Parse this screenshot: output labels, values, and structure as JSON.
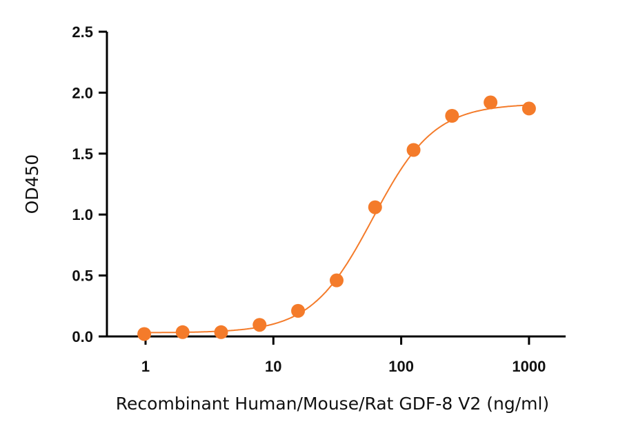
{
  "chart_data": {
    "type": "scatter",
    "title": "",
    "xlabel": "Recombinant Human/Mouse/Rat GDF-8 V2 (ng/ml)",
    "ylabel": "OD450",
    "xscale": "log10",
    "xlim": [
      0.5,
      2000
    ],
    "ylim": [
      0,
      2.5
    ],
    "xticks": [
      1,
      10,
      100,
      1000
    ],
    "xtick_labels": [
      "1",
      "10",
      "100",
      "1000"
    ],
    "yticks": [
      0,
      0.5,
      1.0,
      1.5,
      2.0,
      2.5
    ],
    "ytick_labels": [
      "0.0",
      "0.5",
      "1.0",
      "1.5",
      "2.0",
      "2.5"
    ],
    "grid": false,
    "legend": "none",
    "color": "#F47B2A",
    "series": [
      {
        "name": "GDF-8 V2",
        "x": [
          0.977,
          1.95,
          3.9,
          7.8,
          15.6,
          31.25,
          62.5,
          125,
          250,
          500,
          1000
        ],
        "y": [
          0.02,
          0.035,
          0.035,
          0.095,
          0.21,
          0.46,
          1.06,
          1.53,
          1.81,
          1.92,
          1.87
        ]
      }
    ],
    "fit": {
      "model": "4PL",
      "bottom": 0.03,
      "top": 1.91,
      "ec50": 60,
      "hill": 1.8
    }
  }
}
